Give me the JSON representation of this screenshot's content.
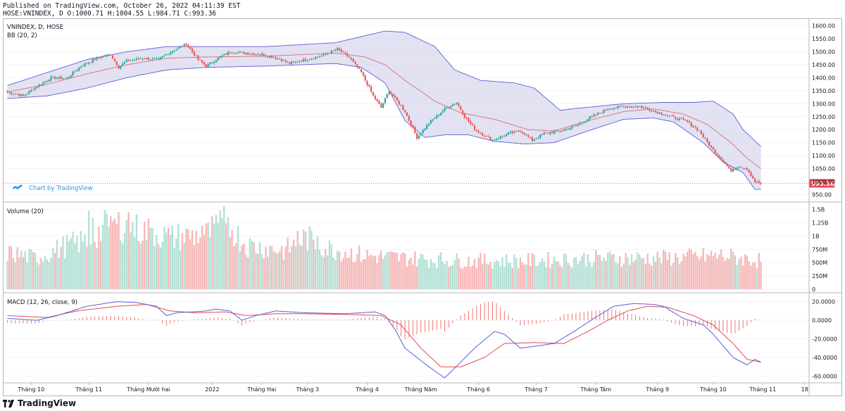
{
  "header": {
    "published_line": "Published on TradingView.com, October 26, 2022 04:11:39 EST",
    "ohlc_line": "HOSE:VNINDEX, D O:1000.71 H:1004.55 L:984.71 C:993.36"
  },
  "legend": {
    "symbol": "VNINDEX, D, HOSE",
    "bb": "BB (20, 2)",
    "volume": "Volume (20)",
    "macd": "MACD (12, 26, close, 9)",
    "attribution": "Chart by TradingView"
  },
  "footer": {
    "brand": "TradingView"
  },
  "colors": {
    "up": "#26a69a",
    "down": "#ef5350",
    "up_vol": "#b4e0d5",
    "down_vol": "#f7b8b8",
    "bb_band": "#5b5fd6",
    "bb_fill": "#d8d8ef",
    "bb_basis": "#e06b75",
    "macd_line": "#5b5fd6",
    "signal_line": "#e8474f",
    "hist": "#ef5350",
    "price_label": "#e8474f",
    "grid": "#f0f3fa",
    "axis_text": "#131722"
  },
  "chart_data": [
    {
      "type": "candlestick",
      "title": "VNINDEX, D, HOSE",
      "indicator": "BB (20, 2)",
      "last_price": "993.36",
      "ylim": [
        935,
        1610
      ],
      "yticks": [
        "1600.00",
        "1550.00",
        "1500.00",
        "1450.00",
        "1400.00",
        "1350.00",
        "1300.00",
        "1250.00",
        "1200.00",
        "1150.00",
        "1100.00",
        "1050.00",
        "1000.00",
        "950.00"
      ],
      "ytick_values": [
        1600,
        1550,
        1500,
        1450,
        1400,
        1350,
        1300,
        1250,
        1200,
        1150,
        1100,
        1050,
        1000,
        950
      ],
      "close_anchors": [
        [
          0,
          1345
        ],
        [
          8,
          1330
        ],
        [
          14,
          1362
        ],
        [
          22,
          1400
        ],
        [
          30,
          1398
        ],
        [
          37,
          1445
        ],
        [
          45,
          1475
        ],
        [
          52,
          1490
        ],
        [
          56,
          1440
        ],
        [
          60,
          1465
        ],
        [
          68,
          1475
        ],
        [
          76,
          1470
        ],
        [
          82,
          1500
        ],
        [
          90,
          1530
        ],
        [
          96,
          1470
        ],
        [
          100,
          1445
        ],
        [
          106,
          1475
        ],
        [
          112,
          1500
        ],
        [
          120,
          1495
        ],
        [
          128,
          1490
        ],
        [
          136,
          1475
        ],
        [
          142,
          1455
        ],
        [
          150,
          1470
        ],
        [
          158,
          1485
        ],
        [
          166,
          1510
        ],
        [
          172,
          1478
        ],
        [
          178,
          1420
        ],
        [
          184,
          1330
        ],
        [
          188,
          1285
        ],
        [
          192,
          1350
        ],
        [
          200,
          1270
        ],
        [
          206,
          1170
        ],
        [
          212,
          1225
        ],
        [
          220,
          1280
        ],
        [
          226,
          1305
        ],
        [
          230,
          1250
        ],
        [
          236,
          1195
        ],
        [
          244,
          1160
        ],
        [
          252,
          1185
        ],
        [
          258,
          1195
        ],
        [
          264,
          1160
        ],
        [
          270,
          1185
        ],
        [
          278,
          1195
        ],
        [
          286,
          1215
        ],
        [
          294,
          1250
        ],
        [
          302,
          1280
        ],
        [
          310,
          1290
        ],
        [
          318,
          1290
        ],
        [
          326,
          1270
        ],
        [
          334,
          1250
        ],
        [
          342,
          1230
        ],
        [
          348,
          1195
        ],
        [
          354,
          1130
        ],
        [
          360,
          1080
        ],
        [
          364,
          1040
        ],
        [
          368,
          1060
        ],
        [
          372,
          1050
        ],
        [
          376,
          1000
        ],
        [
          379,
          993.36
        ]
      ],
      "bb_upper": [
        [
          0,
          1370
        ],
        [
          20,
          1420
        ],
        [
          40,
          1470
        ],
        [
          60,
          1500
        ],
        [
          80,
          1520
        ],
        [
          100,
          1520
        ],
        [
          130,
          1520
        ],
        [
          165,
          1535
        ],
        [
          190,
          1580
        ],
        [
          200,
          1575
        ],
        [
          215,
          1520
        ],
        [
          225,
          1430
        ],
        [
          238,
          1390
        ],
        [
          255,
          1380
        ],
        [
          265,
          1360
        ],
        [
          278,
          1275
        ],
        [
          290,
          1285
        ],
        [
          310,
          1300
        ],
        [
          330,
          1305
        ],
        [
          345,
          1305
        ],
        [
          355,
          1310
        ],
        [
          365,
          1260
        ],
        [
          370,
          1200
        ],
        [
          379,
          1135
        ]
      ],
      "bb_lower": [
        [
          0,
          1320
        ],
        [
          20,
          1330
        ],
        [
          40,
          1360
        ],
        [
          60,
          1400
        ],
        [
          80,
          1430
        ],
        [
          100,
          1440
        ],
        [
          130,
          1445
        ],
        [
          165,
          1455
        ],
        [
          178,
          1440
        ],
        [
          190,
          1380
        ],
        [
          200,
          1235
        ],
        [
          210,
          1170
        ],
        [
          220,
          1180
        ],
        [
          232,
          1180
        ],
        [
          245,
          1155
        ],
        [
          260,
          1145
        ],
        [
          275,
          1150
        ],
        [
          290,
          1190
        ],
        [
          310,
          1240
        ],
        [
          325,
          1245
        ],
        [
          335,
          1230
        ],
        [
          350,
          1150
        ],
        [
          360,
          1075
        ],
        [
          370,
          1035
        ],
        [
          376,
          970
        ],
        [
          379,
          970
        ]
      ],
      "bb_basis": [
        [
          0,
          1345
        ],
        [
          20,
          1375
        ],
        [
          40,
          1415
        ],
        [
          60,
          1450
        ],
        [
          80,
          1475
        ],
        [
          100,
          1480
        ],
        [
          130,
          1483
        ],
        [
          165,
          1495
        ],
        [
          180,
          1480
        ],
        [
          190,
          1450
        ],
        [
          200,
          1390
        ],
        [
          215,
          1310
        ],
        [
          228,
          1265
        ],
        [
          245,
          1240
        ],
        [
          262,
          1200
        ],
        [
          275,
          1195
        ],
        [
          290,
          1230
        ],
        [
          310,
          1270
        ],
        [
          325,
          1280
        ],
        [
          340,
          1260
        ],
        [
          352,
          1220
        ],
        [
          364,
          1150
        ],
        [
          372,
          1090
        ],
        [
          379,
          1050
        ]
      ]
    },
    {
      "type": "bar",
      "title": "Volume (20)",
      "ylim": [
        0,
        1500000000
      ],
      "yticks": [
        "1.5B",
        "1.25B",
        "1B",
        "750M",
        "500M",
        "250M",
        "0"
      ],
      "ytick_values": [
        1500000000,
        1250000000,
        1000000000,
        750000000,
        500000000,
        250000000,
        0
      ],
      "volume_anchors": [
        [
          0,
          700000000
        ],
        [
          15,
          600000000
        ],
        [
          30,
          850000000
        ],
        [
          42,
          950000000
        ],
        [
          52,
          1300000000
        ],
        [
          60,
          1200000000
        ],
        [
          72,
          1100000000
        ],
        [
          82,
          1000000000
        ],
        [
          100,
          1050000000
        ],
        [
          110,
          1300000000
        ],
        [
          120,
          850000000
        ],
        [
          140,
          750000000
        ],
        [
          150,
          1000000000
        ],
        [
          160,
          800000000
        ],
        [
          180,
          650000000
        ],
        [
          200,
          600000000
        ],
        [
          230,
          550000000
        ],
        [
          260,
          550000000
        ],
        [
          300,
          600000000
        ],
        [
          330,
          600000000
        ],
        [
          360,
          650000000
        ],
        [
          379,
          550000000
        ]
      ],
      "volume_spikes": [
        [
          41,
          1480000000
        ],
        [
          43,
          1350000000
        ],
        [
          53,
          1280000000
        ],
        [
          55,
          1230000000
        ],
        [
          61,
          1450000000
        ],
        [
          63,
          1260000000
        ],
        [
          73,
          1150000000
        ],
        [
          82,
          1020000000
        ],
        [
          98,
          1200000000
        ],
        [
          104,
          1230000000
        ],
        [
          108,
          1340000000
        ],
        [
          110,
          1240000000
        ],
        [
          146,
          1100000000
        ],
        [
          156,
          1000000000
        ]
      ]
    },
    {
      "type": "line",
      "title": "MACD (12, 26, close, 9)",
      "ylim": [
        -65,
        25
      ],
      "yticks": [
        "20.0000",
        "0.0000",
        "-20.0000",
        "-40.0000",
        "-60.0000"
      ],
      "ytick_values": [
        20,
        0,
        -20,
        -40,
        -60
      ],
      "series": [
        {
          "name": "MACD",
          "points": [
            [
              0,
              2
            ],
            [
              15,
              0
            ],
            [
              25,
              5
            ],
            [
              40,
              15
            ],
            [
              55,
              20
            ],
            [
              65,
              19
            ],
            [
              75,
              15
            ],
            [
              80,
              5
            ],
            [
              85,
              8
            ],
            [
              100,
              10
            ],
            [
              105,
              12
            ],
            [
              112,
              10
            ],
            [
              118,
              0
            ],
            [
              125,
              5
            ],
            [
              135,
              10
            ],
            [
              150,
              8
            ],
            [
              170,
              7
            ],
            [
              185,
              9
            ],
            [
              190,
              5
            ],
            [
              195,
              -10
            ],
            [
              200,
              -30
            ],
            [
              212,
              -50
            ],
            [
              220,
              -62
            ],
            [
              228,
              -45
            ],
            [
              235,
              -30
            ],
            [
              245,
              -12
            ],
            [
              250,
              -15
            ],
            [
              258,
              -30
            ],
            [
              265,
              -28
            ],
            [
              275,
              -25
            ],
            [
              285,
              -12
            ],
            [
              295,
              2
            ],
            [
              305,
              15
            ],
            [
              315,
              18
            ],
            [
              325,
              17
            ],
            [
              330,
              15
            ],
            [
              340,
              2
            ],
            [
              350,
              -5
            ],
            [
              355,
              -15
            ],
            [
              365,
              -40
            ],
            [
              372,
              -48
            ],
            [
              376,
              -42
            ],
            [
              379,
              -45
            ]
          ]
        },
        {
          "name": "Signal",
          "points": [
            [
              0,
              5
            ],
            [
              20,
              3
            ],
            [
              35,
              10
            ],
            [
              55,
              15
            ],
            [
              70,
              17
            ],
            [
              82,
              10
            ],
            [
              95,
              8
            ],
            [
              110,
              9
            ],
            [
              120,
              5
            ],
            [
              135,
              7
            ],
            [
              150,
              7
            ],
            [
              175,
              6
            ],
            [
              188,
              5
            ],
            [
              198,
              -5
            ],
            [
              208,
              -30
            ],
            [
              218,
              -50
            ],
            [
              228,
              -50
            ],
            [
              240,
              -40
            ],
            [
              250,
              -25
            ],
            [
              265,
              -24
            ],
            [
              280,
              -25
            ],
            [
              292,
              -12
            ],
            [
              302,
              0
            ],
            [
              312,
              10
            ],
            [
              322,
              15
            ],
            [
              332,
              14
            ],
            [
              345,
              5
            ],
            [
              355,
              -5
            ],
            [
              365,
              -25
            ],
            [
              372,
              -42
            ],
            [
              379,
              -45
            ]
          ]
        }
      ]
    }
  ],
  "x_axis": {
    "bar_count": 380,
    "labels": [
      {
        "text": "Tháng 10",
        "bar": 12
      },
      {
        "text": "Tháng 11",
        "bar": 41
      },
      {
        "text": "Tháng Mười hai",
        "bar": 71
      },
      {
        "text": "2022",
        "bar": 103
      },
      {
        "text": "Tháng Hai",
        "bar": 128
      },
      {
        "text": "Tháng 3",
        "bar": 151
      },
      {
        "text": "Tháng 4",
        "bar": 181
      },
      {
        "text": "Tháng Năm",
        "bar": 208
      },
      {
        "text": "Tháng 6",
        "bar": 237
      },
      {
        "text": "Tháng 7",
        "bar": 266
      },
      {
        "text": "Tháng Tám",
        "bar": 296
      },
      {
        "text": "Tháng 9",
        "bar": 327
      },
      {
        "text": "Tháng 10",
        "bar": 355
      },
      {
        "text": "Tháng 11",
        "bar": 380
      },
      {
        "text": "18",
        "bar": 401
      }
    ]
  }
}
